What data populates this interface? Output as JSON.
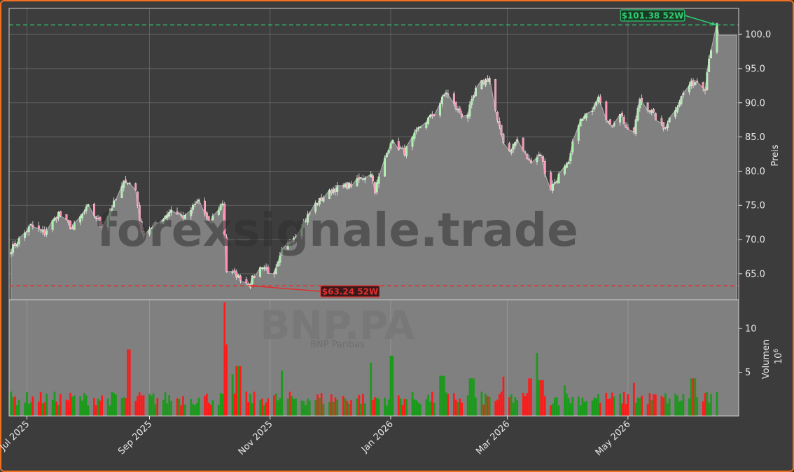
{
  "chart_data": {
    "type": "candlestick",
    "subtype": "price-with-volume",
    "watermark": {
      "site": "forexsignale.trade",
      "ticker": "BNP.PA",
      "company": "BNP Paribas"
    },
    "price_panel": {
      "ylabel": "Preis",
      "ylim": [
        61.2,
        103.8
      ],
      "yticks": [
        65.0,
        70.0,
        75.0,
        80.0,
        85.0,
        90.0,
        95.0,
        100.0
      ],
      "ytick_labels": [
        "65.0",
        "70.0",
        "75.0",
        "80.0",
        "85.0",
        "90.0",
        "95.0",
        "100.0"
      ],
      "grid": true,
      "high_52w": {
        "value": 101.38,
        "label": "$101.38 52W",
        "date": "2026-06-15"
      },
      "low_52w": {
        "value": 63.24,
        "label": "$63.24 52W",
        "date": "2025-10-21"
      },
      "close_series_fill": true,
      "anchors": [
        [
          "2025-06-23",
          68.6
        ],
        [
          "2025-07-03",
          72.0
        ],
        [
          "2025-07-10",
          71.0
        ],
        [
          "2025-07-17",
          73.8
        ],
        [
          "2025-07-24",
          71.6
        ],
        [
          "2025-08-01",
          74.8
        ],
        [
          "2025-08-08",
          72.0
        ],
        [
          "2025-08-15",
          75.8
        ],
        [
          "2025-08-20",
          78.8
        ],
        [
          "2025-08-25",
          77.2
        ],
        [
          "2025-08-28",
          70.8
        ],
        [
          "2025-09-05",
          72.4
        ],
        [
          "2025-09-12",
          74.4
        ],
        [
          "2025-09-19",
          73.2
        ],
        [
          "2025-09-26",
          75.8
        ],
        [
          "2025-10-01",
          72.4
        ],
        [
          "2025-10-08",
          75.4
        ],
        [
          "2025-10-10",
          65.4
        ],
        [
          "2025-10-15",
          64.8
        ],
        [
          "2025-10-21",
          63.5
        ],
        [
          "2025-10-28",
          66.2
        ],
        [
          "2025-11-03",
          64.6
        ],
        [
          "2025-11-07",
          68.2
        ],
        [
          "2025-11-14",
          70.8
        ],
        [
          "2025-11-24",
          75.2
        ],
        [
          "2025-12-03",
          77.4
        ],
        [
          "2025-12-12",
          78.0
        ],
        [
          "2025-12-22",
          79.8
        ],
        [
          "2025-12-24",
          77.2
        ],
        [
          "2026-01-01",
          84.4
        ],
        [
          "2026-01-08",
          82.8
        ],
        [
          "2026-01-16",
          86.6
        ],
        [
          "2026-01-23",
          88.4
        ],
        [
          "2026-01-29",
          91.6
        ],
        [
          "2026-02-03",
          89.2
        ],
        [
          "2026-02-08",
          87.6
        ],
        [
          "2026-02-14",
          92.6
        ],
        [
          "2026-02-20",
          93.6
        ],
        [
          "2026-02-24",
          87.2
        ],
        [
          "2026-03-01",
          82.6
        ],
        [
          "2026-03-06",
          84.6
        ],
        [
          "2026-03-12",
          81.4
        ],
        [
          "2026-03-18",
          82.6
        ],
        [
          "2026-03-22",
          77.0
        ],
        [
          "2026-03-28",
          79.8
        ],
        [
          "2026-04-01",
          81.0
        ],
        [
          "2026-04-05",
          86.8
        ],
        [
          "2026-04-12",
          88.6
        ],
        [
          "2026-04-16",
          91.2
        ],
        [
          "2026-04-22",
          86.4
        ],
        [
          "2026-04-27",
          88.6
        ],
        [
          "2026-05-03",
          84.2
        ],
        [
          "2026-05-07",
          90.6
        ],
        [
          "2026-05-13",
          88.6
        ],
        [
          "2026-05-19",
          86.2
        ],
        [
          "2026-05-25",
          89.2
        ],
        [
          "2026-05-31",
          92.4
        ],
        [
          "2026-06-06",
          93.4
        ],
        [
          "2026-06-09",
          92.2
        ],
        [
          "2026-06-11",
          96.8
        ],
        [
          "2026-06-15",
          101.2
        ]
      ],
      "flat_extension": {
        "from": "2026-06-16",
        "to": "2026-06-25",
        "value": 99.9
      }
    },
    "volume_panel": {
      "ylabel": "Volumen",
      "scale_label": "10",
      "scale_exponent": "6",
      "ylim": [
        0,
        13.3
      ],
      "yticks": [
        5,
        10
      ],
      "ytick_labels": [
        "5",
        "10"
      ],
      "up_color": "#1a9a1a",
      "down_color": "#ff1a1a",
      "spikes": [
        [
          "2025-08-22",
          7.6
        ],
        [
          "2025-10-10",
          13.0
        ],
        [
          "2025-10-11",
          8.2
        ],
        [
          "2025-10-12",
          4.8
        ],
        [
          "2025-10-16",
          5.7
        ],
        [
          "2025-11-08",
          5.2
        ],
        [
          "2025-12-21",
          6.1
        ],
        [
          "2026-01-02",
          6.9
        ],
        [
          "2026-01-27",
          4.6
        ],
        [
          "2026-02-11",
          4.3
        ],
        [
          "2026-02-28",
          4.5
        ],
        [
          "2026-03-13",
          4.3
        ],
        [
          "2026-03-16",
          7.2
        ],
        [
          "2026-03-18",
          4.1
        ],
        [
          "2026-03-29",
          3.5
        ],
        [
          "2026-05-03",
          3.8
        ],
        [
          "2026-06-03",
          4.3
        ]
      ]
    },
    "xaxis": {
      "range": [
        "2025-06-22",
        "2026-06-26"
      ],
      "ticks": [
        "2025-07-01",
        "2025-09-01",
        "2025-11-01",
        "2026-01-01",
        "2026-03-01",
        "2026-05-01"
      ],
      "tick_labels": [
        "Jul 2025",
        "Sep 2025",
        "Nov 2025",
        "Jan 2026",
        "Mar 2026",
        "May 2026"
      ],
      "label_rotation": 45
    },
    "colors": {
      "background": "#3c3c3c",
      "panel": "#3d3d3d",
      "area_fill": "#808080",
      "candle_up": "#a8f0a8",
      "candle_down": "#ff8fb0",
      "high_line": "#2ecc71",
      "low_line": "#e03030",
      "frame_border": "#f36f21"
    }
  }
}
